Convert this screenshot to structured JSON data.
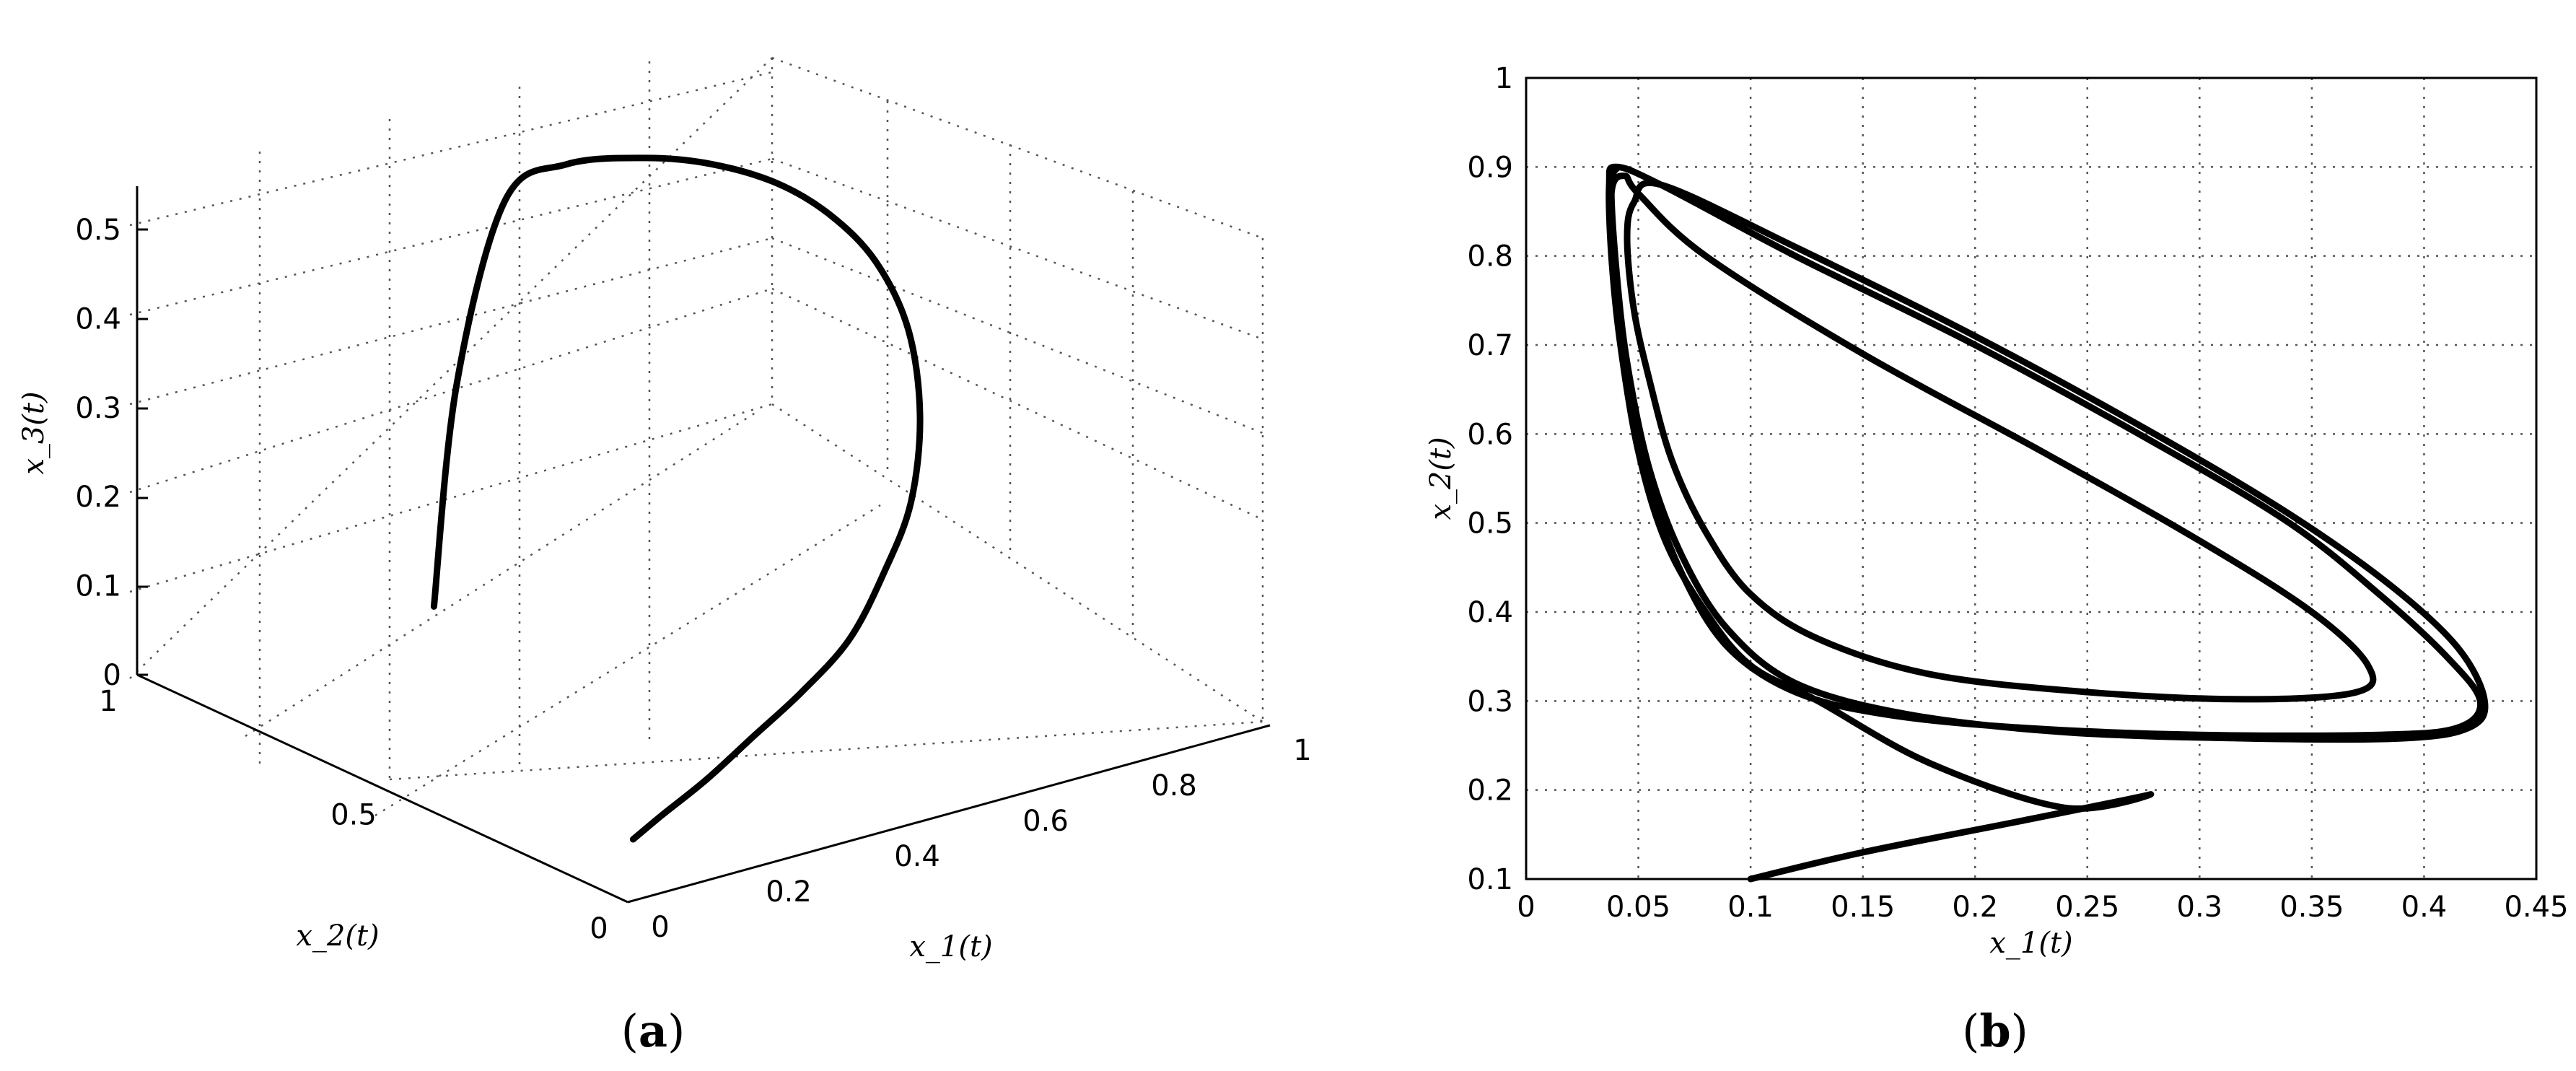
{
  "chart_data": [
    {
      "panel_label": "a",
      "type": "line",
      "projection": "3d",
      "grid": true,
      "xlabel": "x_1(t)",
      "ylabel": "x_2(t)",
      "zlabel": "x_3(t)",
      "xlim": [
        0,
        1
      ],
      "ylim": [
        0,
        1
      ],
      "zlim": [
        0,
        0.55
      ],
      "xticks": [
        "0",
        "0.2",
        "0.4",
        "0.6",
        "0.8",
        "1"
      ],
      "yticks": [
        "0",
        "0.5",
        "1"
      ],
      "zticks": [
        "0",
        "0.1",
        "0.2",
        "0.3",
        "0.4",
        "0.5"
      ],
      "series": [
        {
          "x": [
            0.1,
            0.16,
            0.26,
            0.38,
            0.5,
            0.62,
            0.72,
            0.8,
            0.86,
            0.88,
            0.86,
            0.82,
            0.76,
            0.68,
            0.6,
            0.5,
            0.42,
            0.36,
            0.34
          ],
          "y": [
            0.12,
            0.14,
            0.18,
            0.24,
            0.3,
            0.36,
            0.42,
            0.47,
            0.53,
            0.58,
            0.62,
            0.66,
            0.69,
            0.72,
            0.75,
            0.78,
            0.8,
            0.82,
            0.84
          ],
          "z": [
            0.02,
            0.03,
            0.04,
            0.05,
            0.06,
            0.08,
            0.12,
            0.17,
            0.24,
            0.32,
            0.39,
            0.44,
            0.48,
            0.51,
            0.525,
            0.53,
            0.5,
            0.3,
            0.05
          ]
        }
      ]
    },
    {
      "panel_label": "b",
      "type": "line",
      "grid": true,
      "xlabel": "x_1(t)",
      "ylabel": "x_2(t)",
      "xlim": [
        0,
        0.45
      ],
      "ylim": [
        0.1,
        1
      ],
      "xticks": [
        "0",
        "0.05",
        "0.1",
        "0.15",
        "0.2",
        "0.25",
        "0.3",
        "0.35",
        "0.4",
        "0.45"
      ],
      "yticks": [
        "0.1",
        "0.2",
        "0.3",
        "0.4",
        "0.5",
        "0.6",
        "0.7",
        "0.8",
        "0.9",
        "1"
      ],
      "series": [
        {
          "x": [
            0.1,
            0.15,
            0.22,
            0.278,
            0.24,
            0.18,
            0.13,
            0.1,
            0.08,
            0.062,
            0.05,
            0.042,
            0.038,
            0.037,
            0.04,
            0.06,
            0.12,
            0.2,
            0.28,
            0.34,
            0.38,
            0.41,
            0.425,
            0.415,
            0.38,
            0.3,
            0.22,
            0.16,
            0.12,
            0.09,
            0.07,
            0.055,
            0.045,
            0.04,
            0.038,
            0.044,
            0.05,
            0.08,
            0.15,
            0.23,
            0.3,
            0.35,
            0.375,
            0.37,
            0.32,
            0.25,
            0.18,
            0.13,
            0.1,
            0.08,
            0.065,
            0.055,
            0.048,
            0.045,
            0.048,
            0.06,
            0.12,
            0.2,
            0.28,
            0.34,
            0.385,
            0.415,
            0.427,
            0.42,
            0.39,
            0.32,
            0.24,
            0.17,
            0.12,
            0.09,
            0.07,
            0.055,
            0.045,
            0.04,
            0.038,
            0.041
          ],
          "y": [
            0.1,
            0.13,
            0.165,
            0.195,
            0.18,
            0.23,
            0.3,
            0.34,
            0.4,
            0.48,
            0.58,
            0.7,
            0.8,
            0.88,
            0.9,
            0.88,
            0.8,
            0.7,
            0.59,
            0.5,
            0.42,
            0.35,
            0.3,
            0.27,
            0.262,
            0.262,
            0.27,
            0.285,
            0.31,
            0.36,
            0.44,
            0.54,
            0.65,
            0.76,
            0.87,
            0.89,
            0.87,
            0.8,
            0.69,
            0.58,
            0.48,
            0.4,
            0.34,
            0.31,
            0.302,
            0.31,
            0.33,
            0.37,
            0.42,
            0.49,
            0.57,
            0.66,
            0.74,
            0.82,
            0.86,
            0.88,
            0.81,
            0.71,
            0.6,
            0.51,
            0.43,
            0.36,
            0.3,
            0.27,
            0.258,
            0.258,
            0.265,
            0.285,
            0.32,
            0.38,
            0.46,
            0.56,
            0.68,
            0.79,
            0.88,
            0.9
          ]
        }
      ]
    }
  ]
}
